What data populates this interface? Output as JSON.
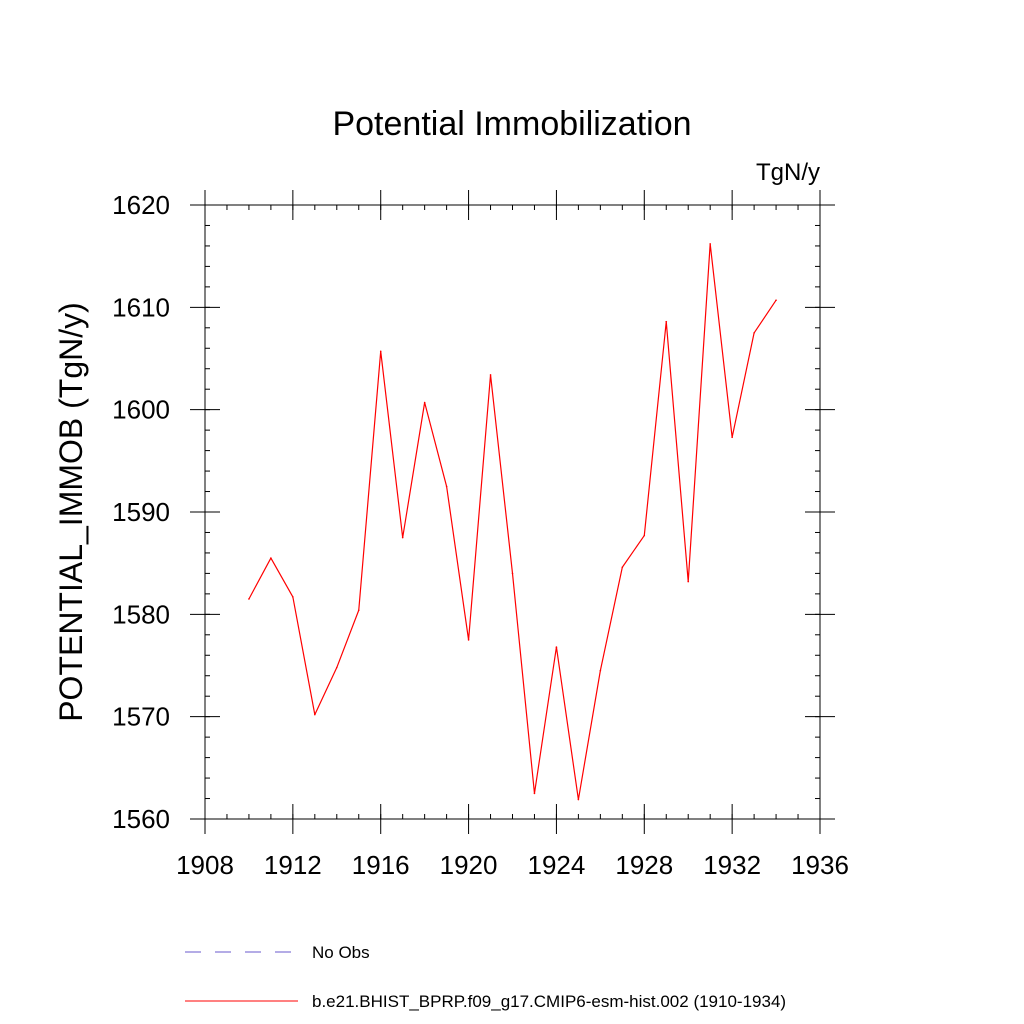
{
  "chart_data": {
    "type": "line",
    "title": "Potential Immobilization",
    "units": "TgN/y",
    "ylabel": "POTENTIAL_IMMOB  (TgN/y)",
    "xlabel": "",
    "xlim": [
      1908,
      1936
    ],
    "ylim": [
      1560,
      1620
    ],
    "xticks": [
      1908,
      1912,
      1916,
      1920,
      1924,
      1928,
      1932,
      1936
    ],
    "yticks": [
      1560,
      1570,
      1580,
      1590,
      1600,
      1610,
      1620
    ],
    "x_minor_step": 1,
    "y_minor_step": 2,
    "grid": false,
    "legend_position": "bottom",
    "x": [
      1910,
      1911,
      1912,
      1913,
      1914,
      1915,
      1916,
      1917,
      1918,
      1919,
      1920,
      1921,
      1922,
      1923,
      1924,
      1925,
      1926,
      1927,
      1928,
      1929,
      1930,
      1931,
      1932,
      1933,
      1934
    ],
    "series": [
      {
        "name": "b.e21.BHIST_BPRP.f09_g17.CMIP6-esm-hist.002 (1910-1934)",
        "color": "#ff0000",
        "dash": "solid",
        "values": [
          1581.5,
          1585.5,
          1581.7,
          1570.2,
          1574.8,
          1580.4,
          1605.7,
          1587.5,
          1600.7,
          1592.5,
          1577.5,
          1603.4,
          1584.0,
          1562.5,
          1576.8,
          1561.9,
          1574.5,
          1584.6,
          1587.7,
          1608.6,
          1583.2,
          1616.2,
          1597.3,
          1607.5,
          1610.7
        ]
      }
    ],
    "legend": [
      {
        "label": "No Obs",
        "color": "#6a5acd",
        "dash": "dashed"
      },
      {
        "label": "b.e21.BHIST_BPRP.f09_g17.CMIP6-esm-hist.002 (1910-1934)",
        "color": "#ff0000",
        "dash": "solid"
      }
    ]
  }
}
